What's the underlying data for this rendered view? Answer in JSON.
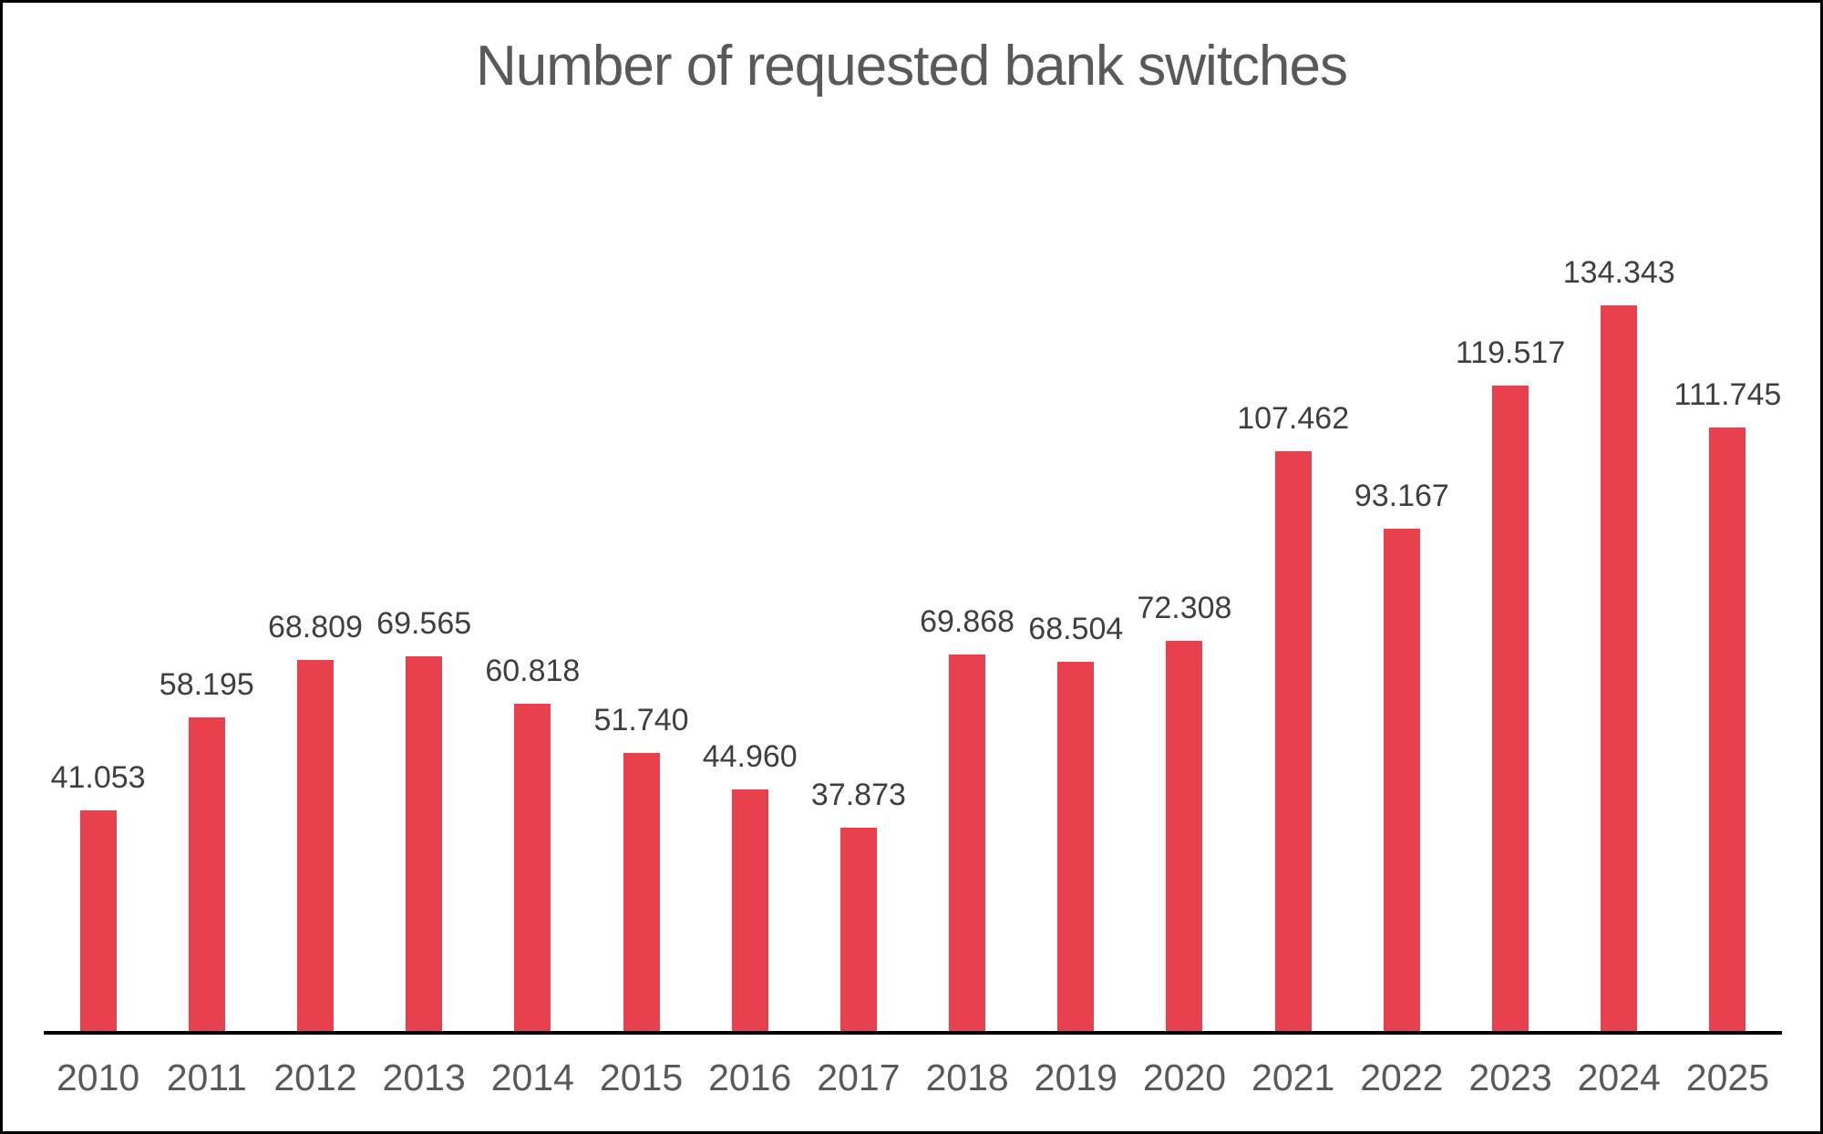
{
  "title": "Number of requested bank switches",
  "chart_data": {
    "type": "bar",
    "title": "Number of requested bank switches",
    "categories": [
      "2010",
      "2011",
      "2012",
      "2013",
      "2014",
      "2015",
      "2016",
      "2017",
      "2018",
      "2019",
      "2020",
      "2021",
      "2022",
      "2023",
      "2024",
      "2025"
    ],
    "values": [
      41053,
      58195,
      68809,
      69565,
      60818,
      51740,
      44960,
      37873,
      69868,
      68504,
      72308,
      107462,
      93167,
      119517,
      134343,
      111745
    ],
    "labels": [
      "41.053",
      "58.195",
      "68.809",
      "69.565",
      "60.818",
      "51.740",
      "44.960",
      "37.873",
      "69.868",
      "68.504",
      "72.308",
      "107.462",
      "93.167",
      "119.517",
      "134.343",
      "111.745"
    ],
    "xlabel": "",
    "ylabel": "",
    "ylim": [
      0,
      140000
    ],
    "grid": false,
    "legend": false,
    "data_labels_position": "outside-end",
    "single_series": true
  },
  "colors": {
    "bar": "#E8404D",
    "title_text": "#595959",
    "label_text": "#3F3F3F",
    "tick_text": "#595959",
    "axis_line": "#000000",
    "border": "#000000",
    "background": "#FFFFFF"
  }
}
